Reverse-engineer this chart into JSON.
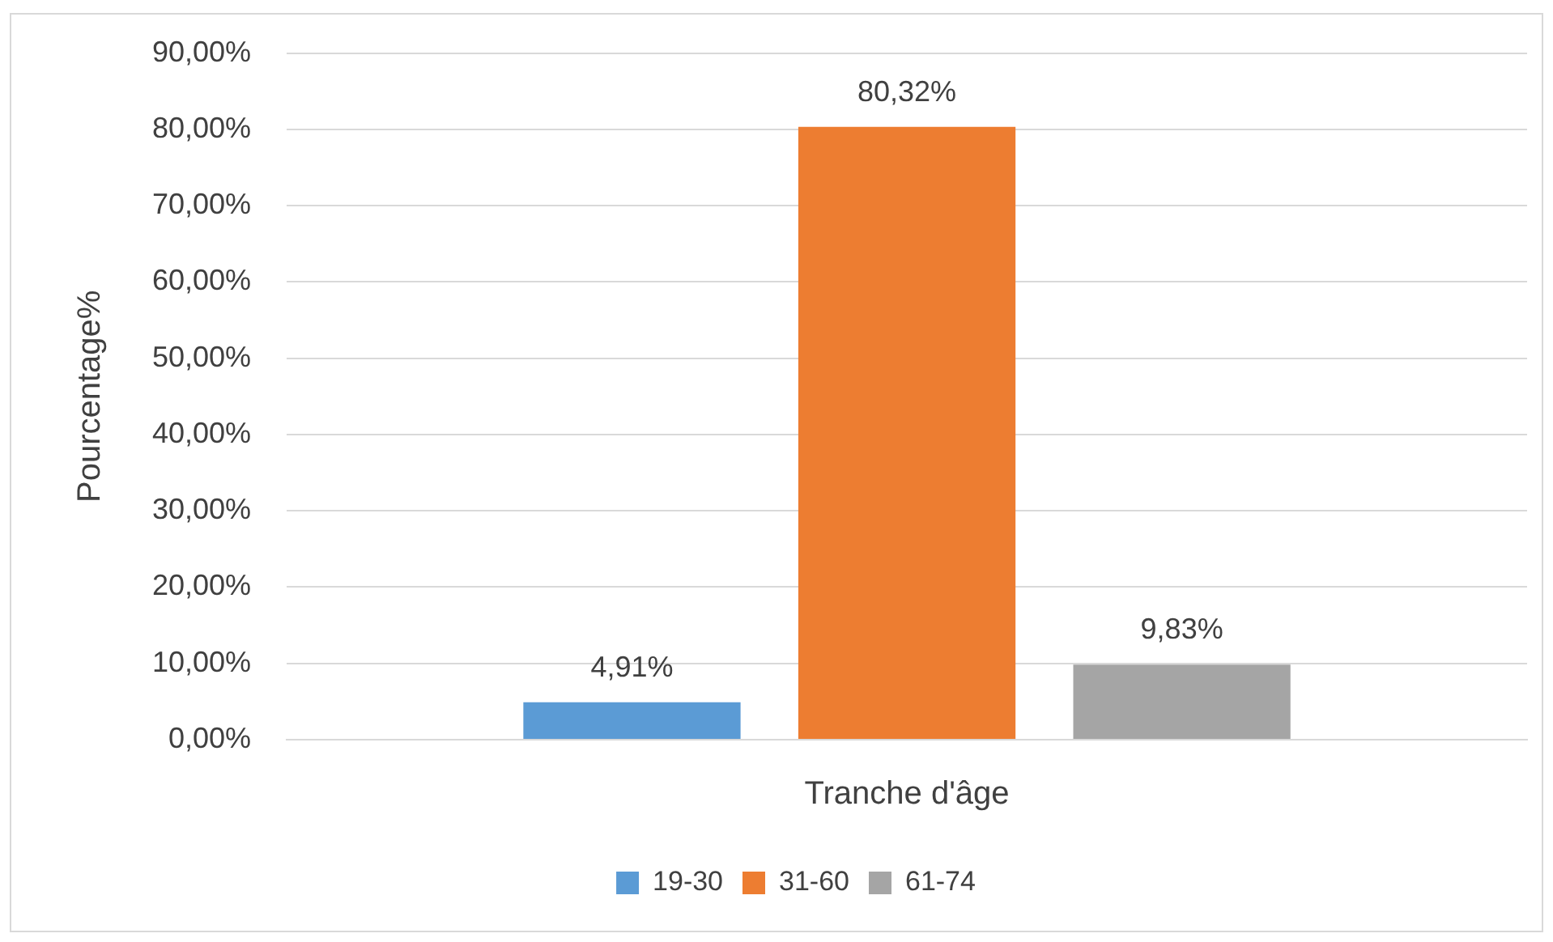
{
  "chart_data": {
    "type": "bar",
    "ylabel": "Pourcentage%",
    "categories": [
      "Tranche d'âge"
    ],
    "series": [
      {
        "name": "19-30",
        "color": "#5b9bd5",
        "values": [
          4.91
        ],
        "value_labels": [
          "4,91%"
        ]
      },
      {
        "name": "31-60",
        "color": "#ed7d31",
        "values": [
          80.32
        ],
        "value_labels": [
          "80,32%"
        ]
      },
      {
        "name": "61-74",
        "color": "#a5a5a5",
        "values": [
          9.83
        ],
        "value_labels": [
          "9,83%"
        ]
      }
    ],
    "ylim": [
      0,
      90
    ],
    "yticks": [
      {
        "value": 0,
        "label": "0,00%"
      },
      {
        "value": 10,
        "label": "10,00%"
      },
      {
        "value": 20,
        "label": "20,00%"
      },
      {
        "value": 30,
        "label": "30,00%"
      },
      {
        "value": 40,
        "label": "40,00%"
      },
      {
        "value": 50,
        "label": "50,00%"
      },
      {
        "value": 60,
        "label": "60,00%"
      },
      {
        "value": 70,
        "label": "70,00%"
      },
      {
        "value": 80,
        "label": "80,00%"
      },
      {
        "value": 90,
        "label": "90,00%"
      }
    ],
    "grid": "y",
    "legend": "bottom"
  }
}
